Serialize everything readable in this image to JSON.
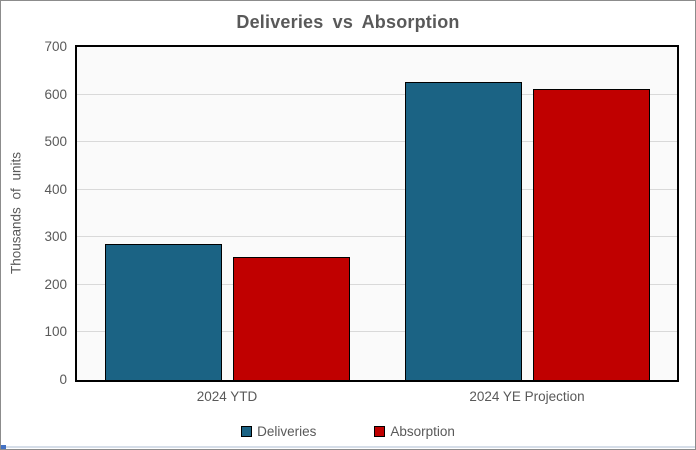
{
  "chart_data": {
    "type": "bar",
    "title": "Deliveries vs Absorption",
    "xlabel": "",
    "ylabel": "Thousands of units",
    "categories": [
      "2024 YTD",
      "2024 YE Projection"
    ],
    "series": [
      {
        "name": "Deliveries",
        "color": "#1B6384",
        "values": [
          285,
          626
        ]
      },
      {
        "name": "Absorption",
        "color": "#C00000",
        "values": [
          258,
          611
        ]
      }
    ],
    "ylim": [
      0,
      700
    ],
    "yticks": [
      0,
      100,
      200,
      300,
      400,
      500,
      600,
      700
    ],
    "grid": true,
    "legend_position": "bottom",
    "bar_border_color": "#000000",
    "gridline_color": "#D9D9D9",
    "text_color": "#595959",
    "plot_background": "#FAFAFA"
  }
}
